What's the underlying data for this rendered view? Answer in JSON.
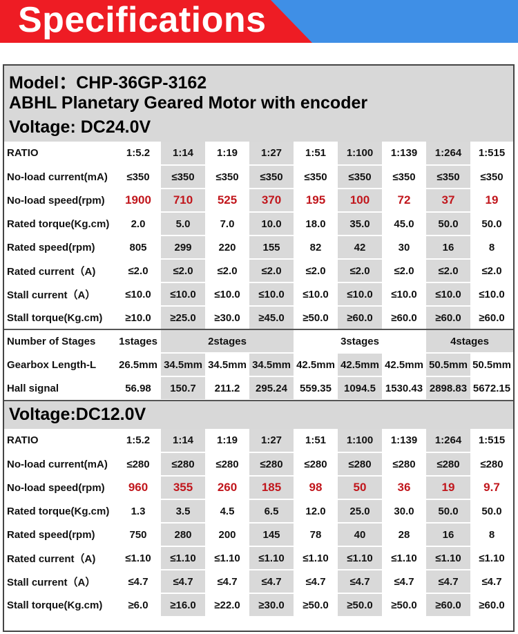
{
  "banner": {
    "title": "Specifications"
  },
  "model_line": "Model：CHP-36GP-3162",
  "product_line": "ABHL Planetary Geared Motor with encoder",
  "section1": {
    "voltage": "Voltage: DC24.0V",
    "rows": [
      {
        "label": "RATIO",
        "values": [
          "1:5.2",
          "1:14",
          "1:19",
          "1:27",
          "1:51",
          "1:100",
          "1:139",
          "1:264",
          "1:515"
        ]
      },
      {
        "label": "No-load current(mA)",
        "values": [
          "≤350",
          "≤350",
          "≤350",
          "≤350",
          "≤350",
          "≤350",
          "≤350",
          "≤350",
          "≤350"
        ]
      },
      {
        "label": "No-load speed(rpm)",
        "values": [
          "1900",
          "710",
          "525",
          "370",
          "195",
          "100",
          "72",
          "37",
          "19"
        ],
        "highlight": true
      },
      {
        "label": "Rated torque(Kg.cm)",
        "values": [
          "2.0",
          "5.0",
          "7.0",
          "10.0",
          "18.0",
          "35.0",
          "45.0",
          "50.0",
          "50.0"
        ]
      },
      {
        "label": "Rated speed(rpm)",
        "values": [
          "805",
          "299",
          "220",
          "155",
          "82",
          "42",
          "30",
          "16",
          "8"
        ]
      },
      {
        "label": "Rated current（A)",
        "values": [
          "≤2.0",
          "≤2.0",
          "≤2.0",
          "≤2.0",
          "≤2.0",
          "≤2.0",
          "≤2.0",
          "≤2.0",
          "≤2.0"
        ]
      },
      {
        "label": "Stall current（A）",
        "values": [
          "≤10.0",
          "≤10.0",
          "≤10.0",
          "≤10.0",
          "≤10.0",
          "≤10.0",
          "≤10.0",
          "≤10.0",
          "≤10.0"
        ]
      },
      {
        "label": "Stall torque(Kg.cm)",
        "values": [
          "≥10.0",
          "≥25.0",
          "≥30.0",
          "≥45.0",
          "≥50.0",
          "≥60.0",
          "≥60.0",
          "≥60.0",
          "≥60.0"
        ]
      }
    ]
  },
  "stages": {
    "label": "Number of Stages",
    "groups": [
      {
        "text": "1stages",
        "span": 1
      },
      {
        "text": "2stages",
        "span": 3
      },
      {
        "text": "3stages",
        "span": 3
      },
      {
        "text": "4stages",
        "span": 2
      }
    ]
  },
  "gearbox": {
    "label": "Gearbox Length-L",
    "values": [
      "26.5mm",
      "34.5mm",
      "34.5mm",
      "34.5mm",
      "42.5mm",
      "42.5mm",
      "42.5mm",
      "50.5mm",
      "50.5mm"
    ]
  },
  "hall": {
    "label": "Hall signal",
    "values": [
      "56.98",
      "150.7",
      "211.2",
      "295.24",
      "559.35",
      "1094.5",
      "1530.43",
      "2898.83",
      "5672.15"
    ]
  },
  "section2": {
    "voltage": "Voltage:DC12.0V",
    "rows": [
      {
        "label": "RATIO",
        "values": [
          "1:5.2",
          "1:14",
          "1:19",
          "1:27",
          "1:51",
          "1:100",
          "1:139",
          "1:264",
          "1:515"
        ]
      },
      {
        "label": "No-load current(mA)",
        "values": [
          "≤280",
          "≤280",
          "≤280",
          "≤280",
          "≤280",
          "≤280",
          "≤280",
          "≤280",
          "≤280"
        ]
      },
      {
        "label": "No-load speed(rpm)",
        "values": [
          "960",
          "355",
          "260",
          "185",
          "98",
          "50",
          "36",
          "19",
          "9.7"
        ],
        "highlight": true
      },
      {
        "label": "Rated torque(Kg.cm)",
        "values": [
          "1.3",
          "3.5",
          "4.5",
          "6.5",
          "12.0",
          "25.0",
          "30.0",
          "50.0",
          "50.0"
        ]
      },
      {
        "label": "Rated speed(rpm)",
        "values": [
          "750",
          "280",
          "200",
          "145",
          "78",
          "40",
          "28",
          "16",
          "8"
        ]
      },
      {
        "label": "Rated current（A)",
        "values": [
          "≤1.10",
          "≤1.10",
          "≤1.10",
          "≤1.10",
          "≤1.10",
          "≤1.10",
          "≤1.10",
          "≤1.10",
          "≤1.10"
        ]
      },
      {
        "label": "Stall current（A）",
        "values": [
          "≤4.7",
          "≤4.7",
          "≤4.7",
          "≤4.7",
          "≤4.7",
          "≤4.7",
          "≤4.7",
          "≤4.7",
          "≤4.7"
        ]
      },
      {
        "label": "Stall torque(Kg.cm)",
        "values": [
          "≥6.0",
          "≥16.0",
          "≥22.0",
          "≥30.0",
          "≥50.0",
          "≥50.0",
          "≥50.0",
          "≥60.0",
          "≥60.0"
        ]
      }
    ]
  }
}
